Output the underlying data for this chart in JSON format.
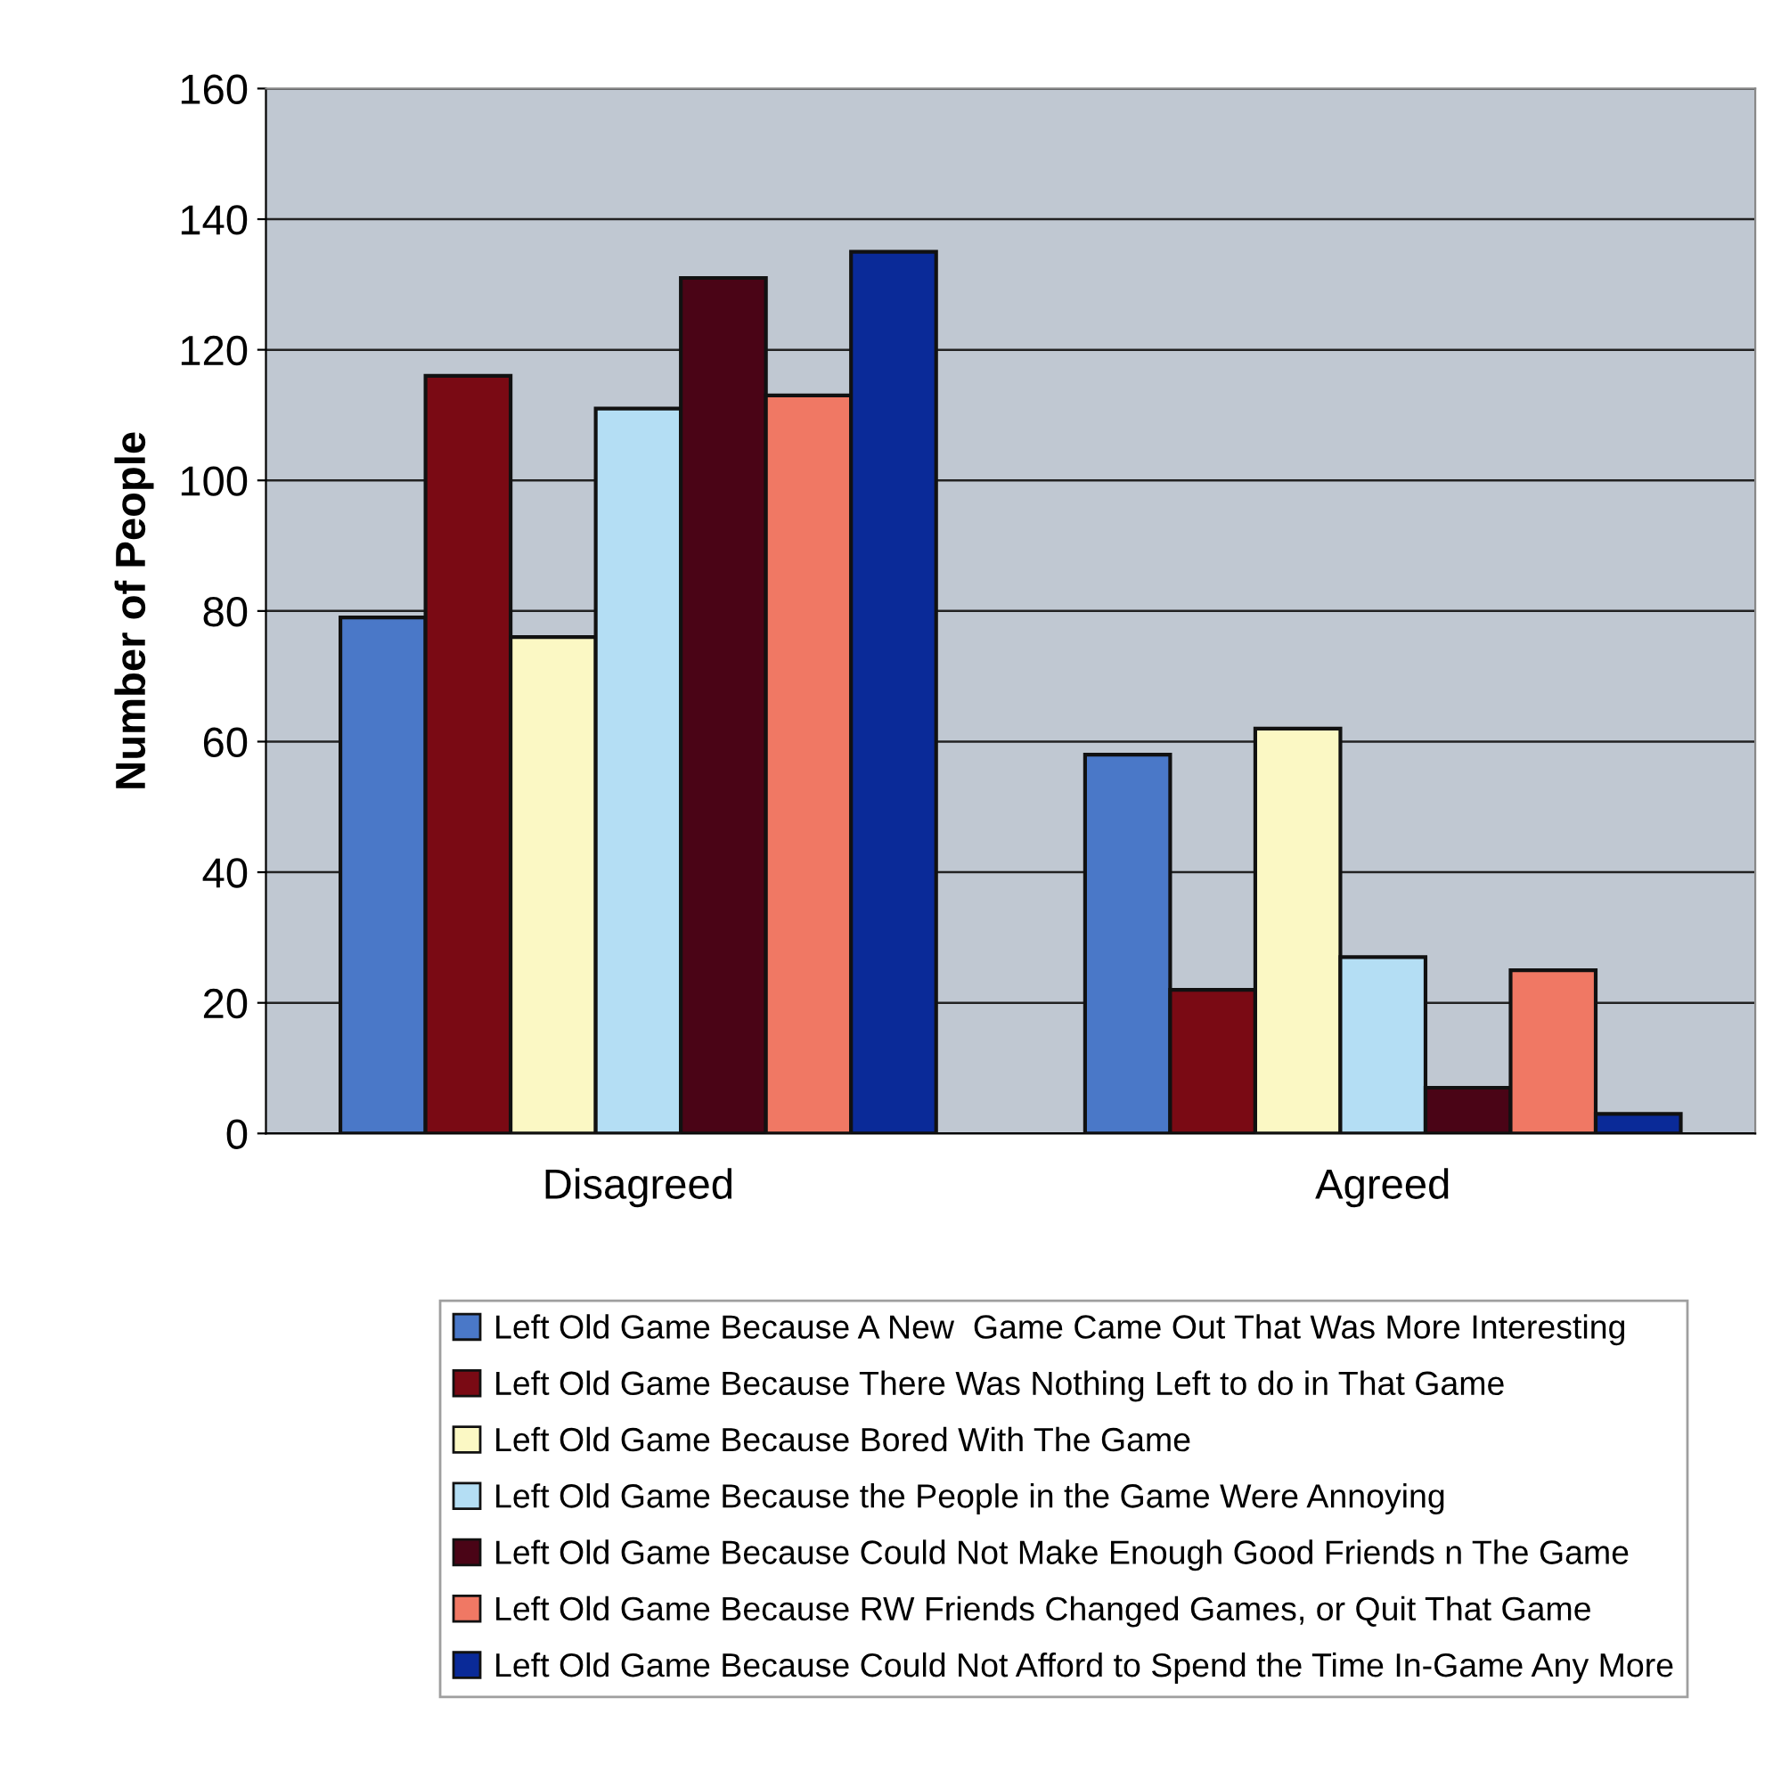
{
  "chart_data": {
    "type": "bar",
    "ylabel": "Number of People",
    "categories": [
      "Disagreed",
      "Agreed"
    ],
    "series": [
      {
        "name": "Left Old Game Because A New  Game Came Out That Was More Interesting",
        "color": "#4a78c8",
        "values": [
          79,
          58
        ]
      },
      {
        "name": "Left Old Game Because There Was Nothing Left to do in That Game",
        "color": "#7a0a14",
        "values": [
          116,
          22
        ]
      },
      {
        "name": "Left Old Game Because Bored With The Game",
        "color": "#fbf8c4",
        "values": [
          76,
          62
        ]
      },
      {
        "name": "Left Old Game Because the People in the Game Were Annoying",
        "color": "#b4def4",
        "values": [
          111,
          27
        ]
      },
      {
        "name": "Left Old Game Because Could Not Make Enough Good Friends n The Game",
        "color": "#4a0416",
        "values": [
          131,
          7
        ]
      },
      {
        "name": "Left Old Game Because RW Friends Changed Games, or Quit That Game",
        "color": "#f07864",
        "values": [
          113,
          25
        ]
      },
      {
        "name": "Left Old Game Because Could Not Afford to Spend the Time In-Game Any More",
        "color": "#0a2a98",
        "values": [
          135,
          3
        ]
      }
    ],
    "ylim": [
      0,
      160
    ],
    "yticks": [
      0,
      20,
      40,
      60,
      80,
      100,
      120,
      140,
      160
    ],
    "grid": "y",
    "legend": "bottom"
  }
}
